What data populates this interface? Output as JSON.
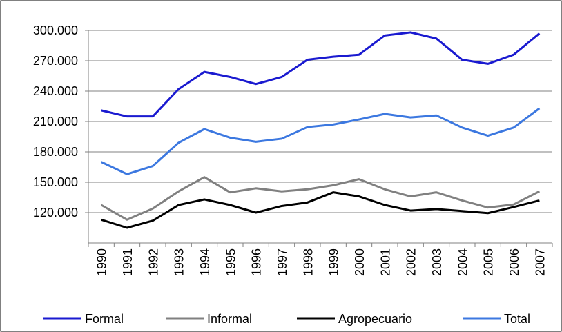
{
  "chart_data": {
    "type": "line",
    "categories": [
      "1990",
      "1991",
      "1992",
      "1993",
      "1994",
      "1995",
      "1996",
      "1997",
      "1998",
      "1999",
      "2000",
      "2001",
      "2002",
      "2003",
      "2004",
      "2005",
      "2006",
      "2007"
    ],
    "series": [
      {
        "name": "Formal",
        "color": "#1a1ad0",
        "values": [
          221000,
          215000,
          215000,
          242000,
          259000,
          254000,
          247000,
          254000,
          271000,
          274000,
          276000,
          295000,
          298000,
          292000,
          271000,
          267000,
          276000,
          297000
        ]
      },
      {
        "name": "Informal",
        "color": "#808080",
        "values": [
          127500,
          113000,
          124000,
          141000,
          155000,
          140000,
          144000,
          141000,
          143000,
          147000,
          153000,
          143000,
          136000,
          140000,
          132000,
          125000,
          128000,
          141000
        ]
      },
      {
        "name": "Agropecuario",
        "color": "#000000",
        "values": [
          113000,
          105000,
          112000,
          127500,
          133000,
          127500,
          120000,
          126500,
          130000,
          140000,
          136000,
          127500,
          122000,
          123500,
          121500,
          119500,
          125500,
          132000
        ]
      },
      {
        "name": "Total",
        "color": "#3c78e0",
        "values": [
          170000,
          158000,
          166000,
          189000,
          202500,
          194000,
          190000,
          193000,
          204500,
          207000,
          212000,
          217500,
          214000,
          216000,
          204000,
          196000,
          204000,
          223000
        ]
      }
    ],
    "ylim": [
      90000,
      300000
    ],
    "yticks": [
      {
        "value": 120000,
        "label": "120.000"
      },
      {
        "value": 150000,
        "label": "150.000"
      },
      {
        "value": 180000,
        "label": "180.000"
      },
      {
        "value": 210000,
        "label": "210.000"
      },
      {
        "value": 240000,
        "label": "240.000"
      },
      {
        "value": 270000,
        "label": "270.000"
      },
      {
        "value": 300000,
        "label": "300.000"
      }
    ],
    "grid": true,
    "legend": "bottom"
  }
}
